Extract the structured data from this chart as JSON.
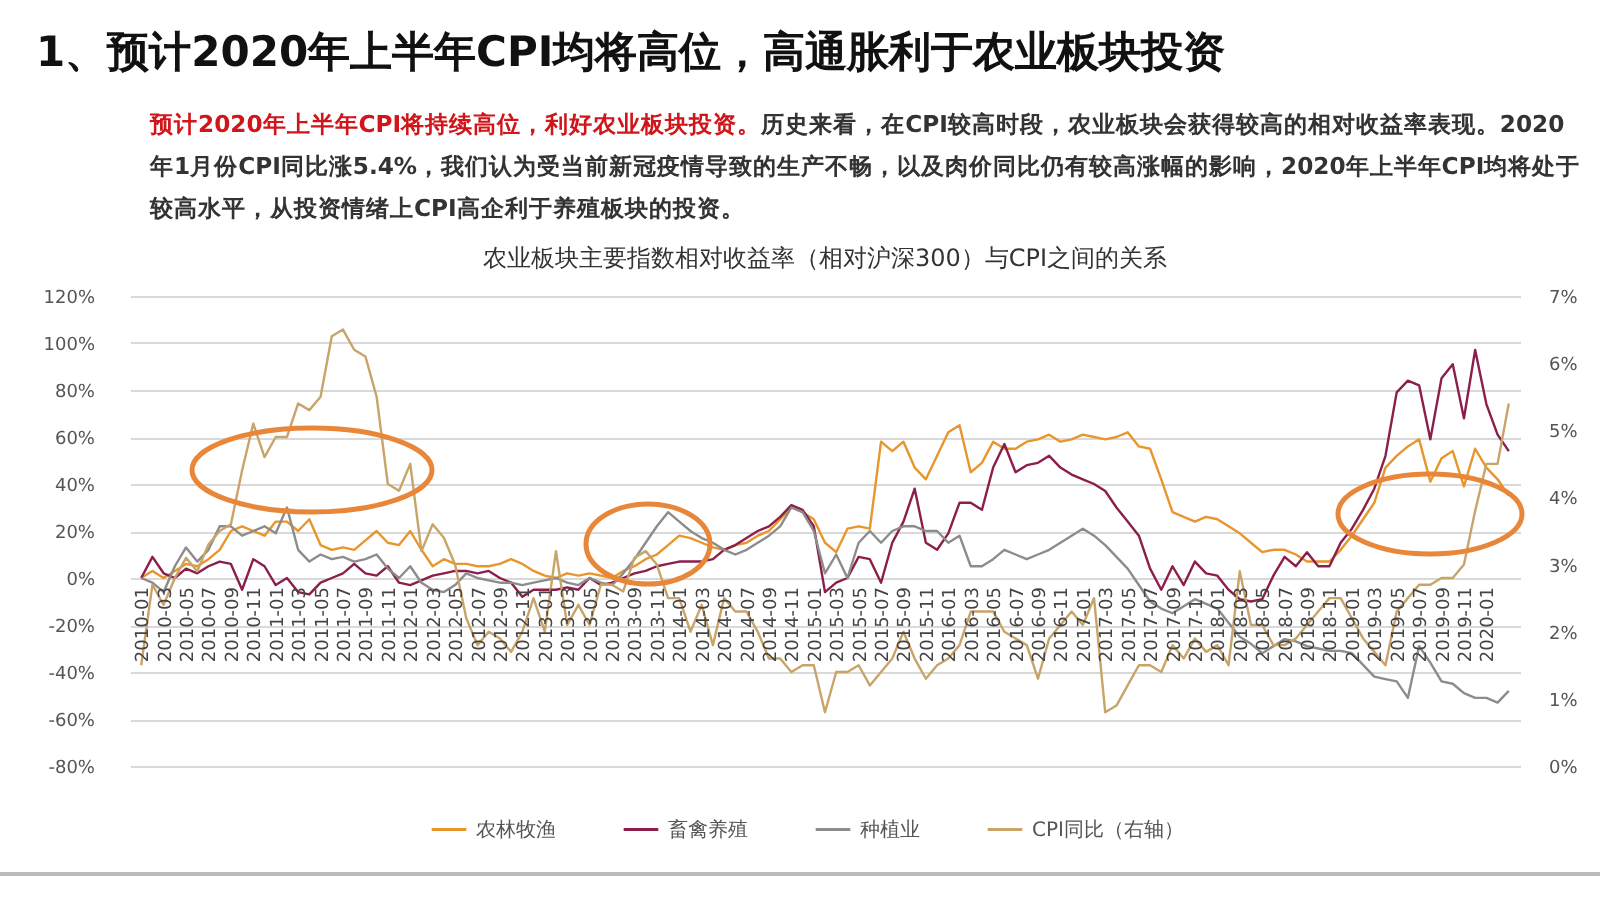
{
  "chart_data": {
    "type": "line",
    "title": "农业板块主要指数相对收益率（相对沪深300）与CPI之间的关系",
    "annotations": [
      "1、预计2020年上半年CPI均将高位，高通胀利于农业板块投资",
      "预计2020年上半年CPI将持续高位，利好农业板块投资。",
      "历史来看，在CPI较高时段，农业板块会获得较高的相对收益率表现。2020年1月份CPI同比涨5.4%，我们认为受当前新冠疫情导致的生产不畅，以及肉价同比仍有较高涨幅的影响，2020年上半年CPI均将处于较高水平，从投资情绪上CPI高企利于养殖板块的投资。"
    ],
    "categories": [
      "2010-01",
      null,
      "2010-03",
      null,
      "2010-05",
      null,
      "2010-07",
      null,
      "2010-09",
      null,
      "2010-11",
      null,
      "2011-01",
      null,
      "2011-03",
      null,
      "2011-05",
      null,
      "2011-07",
      null,
      "2011-09",
      null,
      "2011-11",
      null,
      "2012-01",
      null,
      "2012-03",
      null,
      "2012-05",
      null,
      "2012-07",
      null,
      "2012-09",
      null,
      "2012-11",
      null,
      "2013-01",
      null,
      "2013-03",
      null,
      "2013-05",
      null,
      "2013-07",
      null,
      "2013-09",
      null,
      "2013-11",
      null,
      "2014-01",
      null,
      "2014-03",
      null,
      "2014-05",
      null,
      "2014-07",
      null,
      "2014-09",
      null,
      "2014-11",
      null,
      "2015-01",
      null,
      "2015-03",
      null,
      "2015-05",
      null,
      "2015-07",
      null,
      "2015-09",
      null,
      "2015-11",
      null,
      "2016-01",
      null,
      "2016-03",
      null,
      "2016-05",
      null,
      "2016-07",
      null,
      "2016-09",
      null,
      "2016-11",
      null,
      "2017-01",
      null,
      "2017-03",
      null,
      "2017-05",
      null,
      "2017-07",
      null,
      "2017-09",
      null,
      "2017-11",
      null,
      "2018-01",
      null,
      "2018-03",
      null,
      "2018-05",
      null,
      "2018-07",
      null,
      "2018-09",
      null,
      "2018-11",
      null,
      "2019-01",
      null,
      "2019-03",
      null,
      "2019-05",
      null,
      "2019-07",
      null,
      "2019-09",
      null,
      "2019-11",
      null,
      "2020-01",
      null,
      null
    ],
    "series": [
      {
        "name": "农林牧渔",
        "color": "#e8962c",
        "values": [
          0,
          3,
          0,
          3,
          6,
          5,
          8,
          12,
          20,
          22,
          20,
          18,
          24,
          24,
          20,
          25,
          14,
          12,
          13,
          12,
          16,
          20,
          15,
          14,
          20,
          12,
          5,
          8,
          6,
          6,
          5,
          5,
          6,
          8,
          6,
          3,
          1,
          0,
          2,
          1,
          2,
          1,
          0,
          3,
          5,
          8,
          10,
          14,
          18,
          17,
          15,
          13,
          12,
          14,
          15,
          18,
          20,
          25,
          30,
          28,
          25,
          15,
          11,
          21,
          22,
          21,
          58,
          54,
          58,
          47,
          42,
          52,
          62,
          65,
          45,
          49,
          58,
          55,
          55,
          58,
          59,
          61,
          58,
          59,
          61,
          60,
          59,
          60,
          62,
          56,
          55,
          42,
          28,
          26,
          24,
          26,
          25,
          22,
          19,
          15,
          11,
          12,
          12,
          10,
          7,
          7,
          7,
          12,
          18,
          25,
          32,
          47,
          52,
          56,
          59,
          41,
          51,
          54,
          39,
          55,
          47,
          42,
          35
        ]
      },
      {
        "name": "畜禽养殖",
        "color": "#8b1e4b",
        "values": [
          0,
          9,
          2,
          0,
          4,
          2,
          5,
          7,
          6,
          -5,
          8,
          5,
          -3,
          0,
          -6,
          -7,
          -2,
          0,
          2,
          6,
          2,
          1,
          5,
          -2,
          -3,
          -1,
          1,
          2,
          3,
          3,
          2,
          3,
          0,
          -2,
          -8,
          -5,
          -5,
          -5,
          -4,
          -5,
          0,
          -3,
          -2,
          0,
          2,
          3,
          5,
          6,
          7,
          7,
          7,
          8,
          12,
          14,
          17,
          20,
          22,
          26,
          31,
          29,
          22,
          -6,
          -2,
          0,
          9,
          8,
          -2,
          15,
          24,
          38,
          15,
          12,
          19,
          32,
          32,
          29,
          47,
          57,
          45,
          48,
          49,
          52,
          47,
          44,
          42,
          40,
          37,
          30,
          24,
          18,
          4,
          -5,
          5,
          -3,
          7,
          2,
          1,
          -5,
          -9,
          -10,
          -9,
          1,
          9,
          5,
          11,
          5,
          5,
          15,
          21,
          29,
          38,
          52,
          79,
          84,
          82,
          59,
          85,
          91,
          68,
          97,
          74,
          61,
          54
        ]
      },
      {
        "name": "种植业",
        "color": "#8c8c8c",
        "values": [
          0,
          -2,
          -6,
          5,
          13,
          7,
          12,
          22,
          22,
          18,
          20,
          22,
          19,
          30,
          12,
          7,
          10,
          8,
          9,
          7,
          8,
          10,
          4,
          0,
          5,
          -2,
          -5,
          -6,
          -3,
          2,
          0,
          -1,
          -2,
          -2,
          -3,
          -2,
          -1,
          0,
          -2,
          -3,
          0,
          -2,
          -3,
          2,
          8,
          15,
          22,
          28,
          24,
          20,
          17,
          15,
          12,
          10,
          12,
          15,
          18,
          22,
          30,
          28,
          20,
          2,
          10,
          0,
          15,
          20,
          15,
          20,
          22,
          22,
          20,
          20,
          15,
          18,
          5,
          5,
          8,
          12,
          10,
          8,
          10,
          12,
          15,
          18,
          21,
          18,
          14,
          9,
          4,
          -3,
          -10,
          -13,
          -15,
          -12,
          -9,
          -11,
          -13,
          -19,
          -25,
          -28,
          -32,
          -29,
          -26,
          -27,
          -29,
          -30,
          -31,
          -31,
          -32,
          -37,
          -42,
          -43,
          -44,
          -51,
          -29,
          -36,
          -44,
          -45,
          -49,
          -51,
          -51,
          -53,
          -48
        ]
      },
      {
        "name": "CPI同比（右轴）",
        "color": "#c9a469",
        "axis": "y2",
        "values": [
          1.5,
          2.7,
          2.4,
          2.8,
          3.1,
          2.9,
          3.3,
          3.5,
          3.6,
          4.4,
          5.1,
          4.6,
          4.9,
          4.9,
          5.4,
          5.3,
          5.5,
          6.4,
          6.5,
          6.2,
          6.1,
          5.5,
          4.2,
          4.1,
          4.5,
          3.2,
          3.6,
          3.4,
          3.0,
          2.2,
          1.8,
          2.0,
          1.9,
          1.7,
          2.0,
          2.5,
          2.0,
          3.2,
          2.1,
          2.4,
          2.1,
          2.7,
          2.7,
          2.6,
          3.1,
          3.2,
          3.0,
          2.5,
          2.5,
          2.0,
          2.4,
          1.8,
          2.5,
          2.3,
          2.3,
          2.0,
          1.6,
          1.6,
          1.4,
          1.5,
          1.5,
          0.8,
          1.4,
          1.4,
          1.5,
          1.2,
          1.4,
          1.6,
          2.0,
          1.6,
          1.3,
          1.5,
          1.6,
          1.8,
          2.3,
          2.3,
          2.3,
          2.0,
          1.9,
          1.8,
          1.3,
          1.9,
          2.1,
          2.3,
          2.1,
          2.5,
          0.8,
          0.9,
          1.2,
          1.5,
          1.5,
          1.4,
          1.8,
          1.6,
          1.9,
          1.7,
          1.8,
          1.5,
          2.9,
          2.1,
          2.1,
          1.8,
          1.8,
          1.9,
          2.1,
          2.3,
          2.5,
          2.5,
          2.2,
          1.9,
          1.7,
          1.5,
          2.3,
          2.5,
          2.7,
          2.7,
          2.8,
          2.8,
          3.0,
          3.8,
          4.5,
          4.5,
          5.4
        ]
      }
    ],
    "ylim": [
      -80,
      120
    ],
    "yticks": [
      {
        "value": -80,
        "label": "-80%"
      },
      {
        "value": -60,
        "label": "-60%"
      },
      {
        "value": -40,
        "label": "-40%"
      },
      {
        "value": -20,
        "label": "-20%"
      },
      {
        "value": 0,
        "label": "0%"
      },
      {
        "value": 20,
        "label": "20%"
      },
      {
        "value": 40,
        "label": "40%"
      },
      {
        "value": 60,
        "label": "60%"
      },
      {
        "value": 80,
        "label": "80%"
      },
      {
        "value": 100,
        "label": "100%"
      },
      {
        "value": 120,
        "label": "120%"
      }
    ],
    "y2lim": [
      0,
      7
    ],
    "y2ticks": [
      {
        "value": 0,
        "label": "0%"
      },
      {
        "value": 1,
        "label": "1%"
      },
      {
        "value": 2,
        "label": "2%"
      },
      {
        "value": 3,
        "label": "3%"
      },
      {
        "value": 4,
        "label": "4%"
      },
      {
        "value": 5,
        "label": "5%"
      },
      {
        "value": 6,
        "label": "6%"
      },
      {
        "value": 7,
        "label": "7%"
      }
    ],
    "grid": "y",
    "legend": "bottom",
    "marker": "none"
  }
}
